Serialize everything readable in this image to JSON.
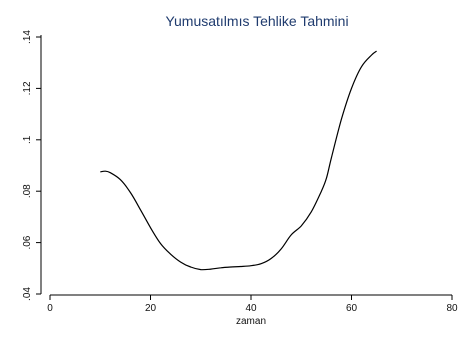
{
  "chart_data": {
    "type": "line",
    "title": "Yumusatılmıs Tehlike Tahmini",
    "xlabel": "zaman",
    "ylabel": "",
    "xlim": [
      0,
      80
    ],
    "ylim": [
      0.04,
      0.14
    ],
    "x_ticks": [
      0,
      20,
      40,
      60,
      80
    ],
    "x_tick_labels": [
      "0",
      "20",
      "40",
      "60",
      "80"
    ],
    "y_ticks": [
      0.04,
      0.06,
      0.08,
      0.1,
      0.12,
      0.14
    ],
    "y_tick_labels": [
      ".04",
      ".06",
      ".08",
      ".1",
      ".12",
      ".14"
    ],
    "grid": false,
    "legend": "none",
    "series": [
      {
        "color": "#000000",
        "points": [
          [
            10,
            0.0875
          ],
          [
            11,
            0.0878
          ],
          [
            12,
            0.0872
          ],
          [
            14,
            0.0845
          ],
          [
            16,
            0.0795
          ],
          [
            18,
            0.0728
          ],
          [
            20,
            0.0658
          ],
          [
            22,
            0.0596
          ],
          [
            24,
            0.0555
          ],
          [
            26,
            0.0524
          ],
          [
            28,
            0.0505
          ],
          [
            30,
            0.0495
          ],
          [
            32,
            0.0497
          ],
          [
            34,
            0.0502
          ],
          [
            36,
            0.0505
          ],
          [
            38,
            0.0507
          ],
          [
            40,
            0.051
          ],
          [
            42,
            0.0518
          ],
          [
            44,
            0.0538
          ],
          [
            46,
            0.0575
          ],
          [
            48,
            0.063
          ],
          [
            50,
            0.0665
          ],
          [
            52,
            0.072
          ],
          [
            54,
            0.08
          ],
          [
            55,
            0.085
          ],
          [
            56,
            0.093
          ],
          [
            58,
            0.108
          ],
          [
            60,
            0.12
          ],
          [
            62,
            0.1285
          ],
          [
            64,
            0.133
          ],
          [
            65,
            0.1345
          ]
        ]
      }
    ]
  }
}
